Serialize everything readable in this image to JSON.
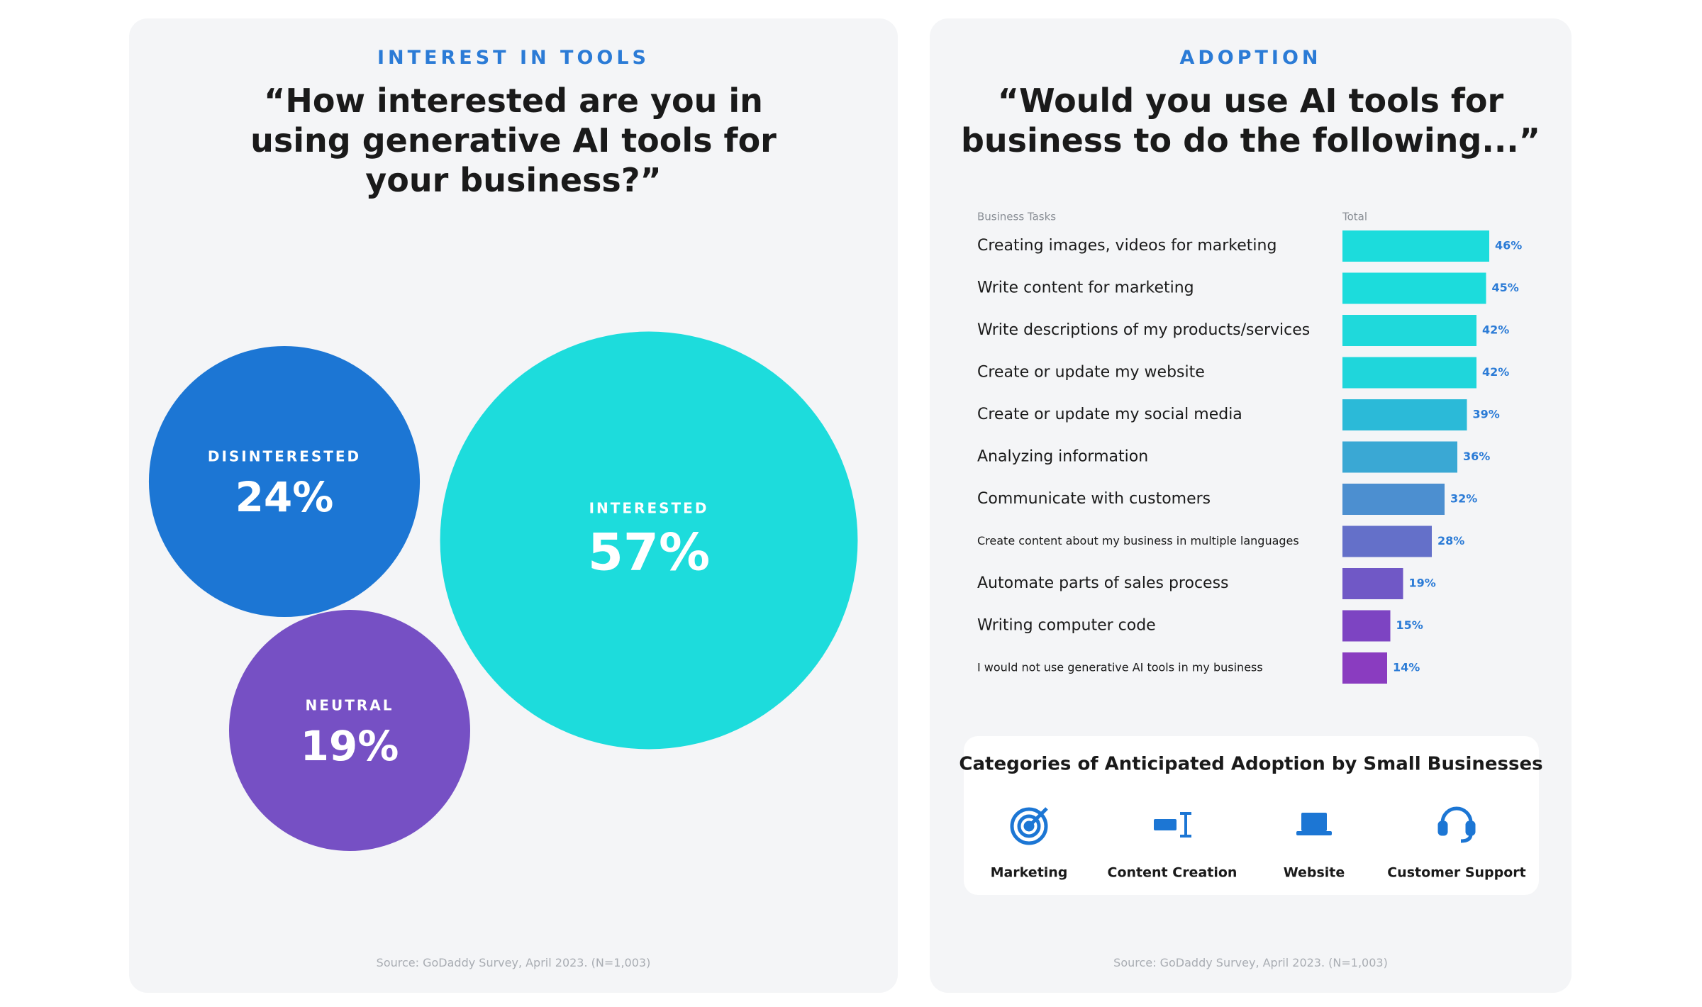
{
  "chart_data": [
    {
      "type": "bubble",
      "kicker": "INTEREST IN TOOLS",
      "title": "“How interested are you in using generative AI tools for your business?”",
      "categories": [
        "DISINTERESTED",
        "INTERESTED",
        "NEUTRAL"
      ],
      "values": [
        24,
        57,
        19
      ],
      "value_labels": [
        "24%",
        "57%",
        "19%"
      ],
      "colors": [
        "#1c76d4",
        "#1ddcdc",
        "#7650c4"
      ],
      "source": "Source: GoDaddy Survey, April 2023. (N=1,003)"
    },
    {
      "type": "bar",
      "kicker": "ADOPTION",
      "title": "“Would you use AI tools for business to do the following...”",
      "category_header": "Business Tasks",
      "value_header": "Total",
      "categories": [
        "Creating images, videos for marketing",
        "Write content for marketing",
        "Write descriptions of my products/services",
        "Create or update my website",
        "Create or update my social media",
        "Analyzing information",
        "Communicate with customers",
        "Create content about my business in multiple languages",
        "Automate parts of sales process",
        "Writing computer code",
        "I would not use generative AI tools in my business"
      ],
      "values": [
        46,
        45,
        42,
        42,
        39,
        36,
        32,
        28,
        19,
        15,
        14
      ],
      "value_labels": [
        "46%",
        "45%",
        "42%",
        "42%",
        "39%",
        "36%",
        "32%",
        "28%",
        "19%",
        "15%",
        "14%"
      ],
      "colors": [
        "#1cdcdc",
        "#1cdcdc",
        "#1fd9db",
        "#1fd6db",
        "#2bbad8",
        "#3aa8d4",
        "#4c8fd0",
        "#6470c9",
        "#7058c6",
        "#7d44c2",
        "#8a3cc0"
      ],
      "xlim": [
        0,
        100
      ],
      "adoption_categories": {
        "title": "Categories of Anticipated Adoption by Small Businesses",
        "items": [
          "Marketing",
          "Content Creation",
          "Website",
          "Customer Support"
        ]
      },
      "source": "Source: GoDaddy Survey, April 2023. (N=1,003)"
    }
  ]
}
